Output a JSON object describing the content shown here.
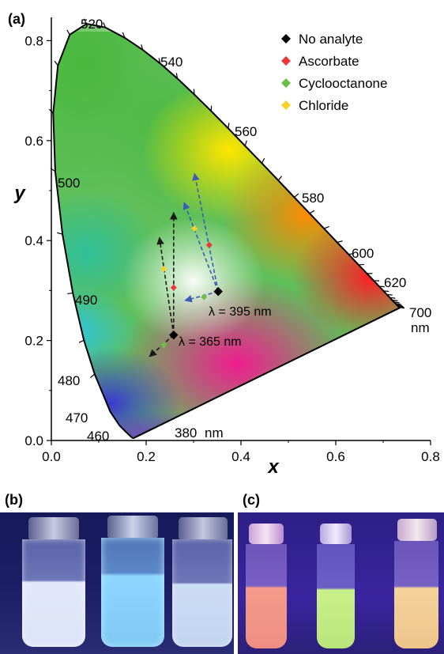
{
  "panels": {
    "a": "(a)",
    "b": "(b)",
    "c": "(c)"
  },
  "chart_data": {
    "type": "scatter",
    "title": "",
    "xlabel": "x",
    "ylabel": "y",
    "xlim": [
      0.0,
      0.8
    ],
    "ylim": [
      0.0,
      0.85
    ],
    "xticks": [
      "0.0",
      "0.2",
      "0.4",
      "0.6",
      "0.8"
    ],
    "yticks": [
      "0.0",
      "0.2",
      "0.4",
      "0.6",
      "0.8"
    ],
    "grid": false,
    "legend_position": "top-right",
    "legend": [
      {
        "label": "No analyte",
        "color": "#000000"
      },
      {
        "label": "Ascorbate",
        "color": "#e8383a"
      },
      {
        "label": "Cyclooctanone",
        "color": "#6cc04a"
      },
      {
        "label": "Chloride",
        "color": "#f5d22e"
      }
    ],
    "locus_wavelength_labels": [
      "520",
      "540",
      "560",
      "580",
      "600",
      "620",
      "700",
      "500",
      "490",
      "480",
      "470",
      "460",
      "380"
    ],
    "locus_unit_labels": [
      "nm",
      "nm"
    ],
    "annotations": [
      "λ = 395 nm",
      "λ = 365 nm"
    ],
    "series": [
      {
        "name": "λ = 365 nm",
        "line_color": "#1a1a1a",
        "no_analyte": [
          0.258,
          0.211
        ],
        "points": [
          {
            "analyte": "Ascorbate",
            "xy": [
              0.258,
              0.306
            ],
            "arrow_end": [
              0.258,
              0.456
            ]
          },
          {
            "analyte": "Chloride",
            "xy": [
              0.237,
              0.343
            ],
            "arrow_end": [
              0.228,
              0.406
            ]
          },
          {
            "analyte": "Cyclooctanone",
            "xy": [
              0.237,
              0.191
            ],
            "arrow_end": [
              0.207,
              0.168
            ]
          }
        ]
      },
      {
        "name": "λ = 395 nm",
        "line_color": "#3b5bb5",
        "no_analyte": [
          0.352,
          0.298
        ],
        "points": [
          {
            "analyte": "Ascorbate",
            "xy": [
              0.333,
              0.391
            ],
            "arrow_end": [
              0.302,
              0.534
            ]
          },
          {
            "analyte": "Chloride",
            "xy": [
              0.302,
              0.424
            ],
            "arrow_end": [
              0.28,
              0.476
            ]
          },
          {
            "analyte": "Cyclooctanone",
            "xy": [
              0.322,
              0.287
            ],
            "arrow_end": [
              0.282,
              0.28
            ]
          }
        ]
      }
    ]
  }
}
